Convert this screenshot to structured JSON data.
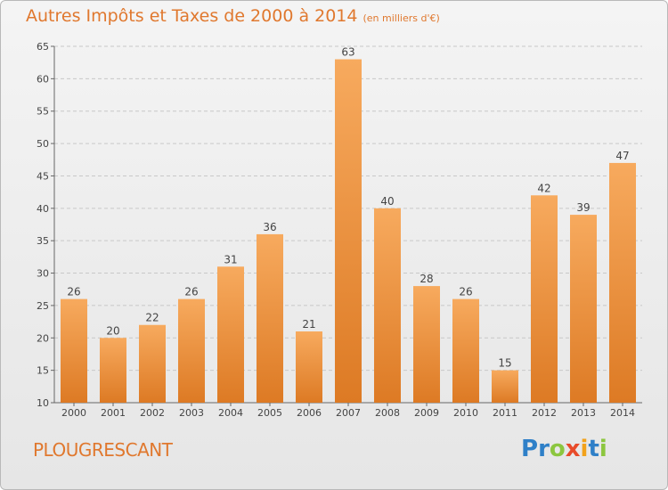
{
  "title": "Autres Impôts et Taxes de 2000 à 2014",
  "subtitle": "(en milliers d'€)",
  "commune": "PLOUGRESCANT",
  "brand": {
    "letters": [
      "P",
      "r",
      "o",
      "x",
      "i",
      "t",
      "i"
    ],
    "colors": [
      "#2f80c8",
      "#2f80c8",
      "#8cc63f",
      "#e84b2a",
      "#f2a21b",
      "#2f80c8",
      "#8cc63f"
    ]
  },
  "colors": {
    "bar_light": "#f7aa5e",
    "bar_dark": "#dd7a24",
    "accent": "#e0782e"
  },
  "chart_data": {
    "type": "bar",
    "categories": [
      "2000",
      "2001",
      "2002",
      "2003",
      "2004",
      "2005",
      "2006",
      "2007",
      "2008",
      "2009",
      "2010",
      "2011",
      "2012",
      "2013",
      "2014"
    ],
    "values": [
      26,
      20,
      22,
      26,
      31,
      36,
      21,
      63,
      40,
      28,
      26,
      15,
      42,
      39,
      47
    ],
    "yticks": [
      10,
      15,
      20,
      25,
      30,
      35,
      40,
      45,
      50,
      55,
      60,
      65
    ],
    "ylim": [
      10,
      65
    ],
    "grid": "horizontal dashed"
  }
}
